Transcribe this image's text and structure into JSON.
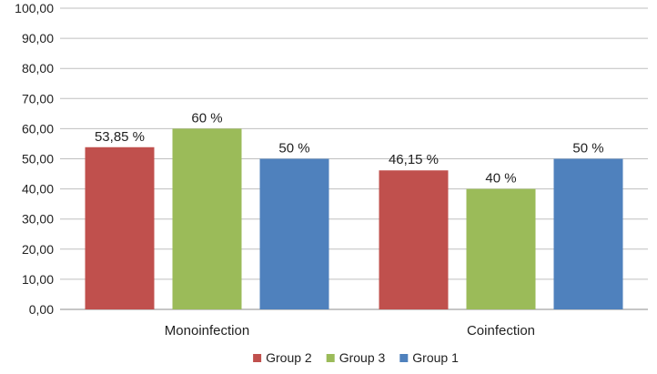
{
  "chart_data": {
    "type": "bar",
    "title": "",
    "xlabel": "",
    "ylabel": "",
    "ylim": [
      0,
      100
    ],
    "ytick_step": 10,
    "ytick_labels": [
      "0,00",
      "10,00",
      "20,00",
      "30,00",
      "40,00",
      "50,00",
      "60,00",
      "70,00",
      "80,00",
      "90,00",
      "100,00"
    ],
    "grid": true,
    "legend_position": "bottom",
    "categories": [
      "Monoinfection",
      "Coinfection"
    ],
    "series": [
      {
        "name": "Group 2",
        "color": "#C0504D",
        "values": [
          53.85,
          46.15
        ],
        "labels": [
          "53,85 %",
          "46,15 %"
        ]
      },
      {
        "name": "Group 3",
        "color": "#9BBB59",
        "values": [
          60,
          40
        ],
        "labels": [
          "60 %",
          "40 %"
        ]
      },
      {
        "name": "Group 1",
        "color": "#4F81BD",
        "values": [
          50,
          50
        ],
        "labels": [
          "50 %",
          "50 %"
        ]
      }
    ]
  }
}
